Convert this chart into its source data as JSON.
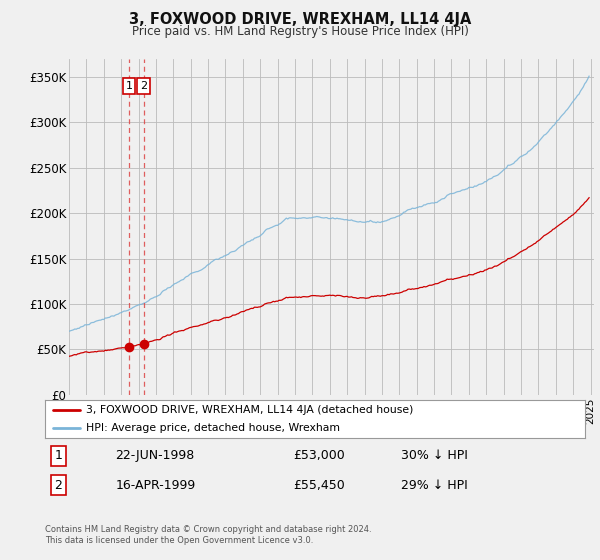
{
  "title": "3, FOXWOOD DRIVE, WREXHAM, LL14 4JA",
  "subtitle": "Price paid vs. HM Land Registry's House Price Index (HPI)",
  "background_color": "#f0f0f0",
  "plot_bg_color": "#f0f0f0",
  "grid_color": "#bbbbbb",
  "ylim": [
    0,
    370000
  ],
  "yticks": [
    0,
    50000,
    100000,
    150000,
    200000,
    250000,
    300000,
    350000
  ],
  "ytick_labels": [
    "£0",
    "£50K",
    "£100K",
    "£150K",
    "£200K",
    "£250K",
    "£300K",
    "£350K"
  ],
  "hpi_color": "#7ab4d8",
  "price_color": "#cc0000",
  "dashed_line_color": "#dd4444",
  "marker_color": "#cc0000",
  "transaction1_year": 1998.458,
  "transaction1_price": 53000,
  "transaction2_year": 1999.292,
  "transaction2_price": 55450,
  "transaction1_date": "22-JUN-1998",
  "transaction1_price_str": "£53,000",
  "transaction1_hpi": "30% ↓ HPI",
  "transaction2_date": "16-APR-1999",
  "transaction2_price_str": "£55,450",
  "transaction2_hpi": "29% ↓ HPI",
  "footer": "Contains HM Land Registry data © Crown copyright and database right 2024.\nThis data is licensed under the Open Government Licence v3.0.",
  "legend_label_red": "3, FOXWOOD DRIVE, WREXHAM, LL14 4JA (detached house)",
  "legend_label_blue": "HPI: Average price, detached house, Wrexham"
}
